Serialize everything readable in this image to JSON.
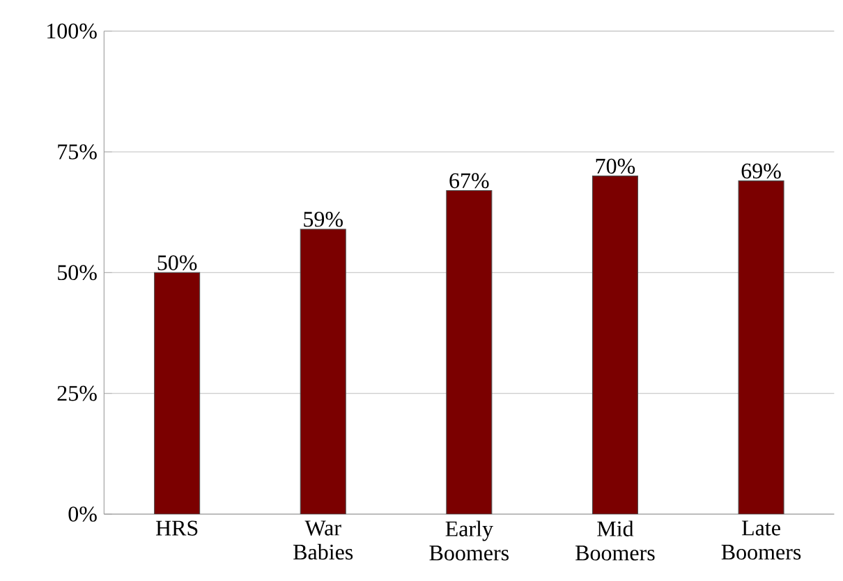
{
  "chart_data": {
    "type": "bar",
    "categories": [
      "HRS",
      "War Babies",
      "Early Boomers",
      "Mid Boomers",
      "Late Boomers"
    ],
    "values": [
      50,
      59,
      67,
      70,
      69
    ],
    "value_labels": [
      "50%",
      "59%",
      "67%",
      "70%",
      "69%"
    ],
    "color": "#7b0000",
    "ylim": [
      0,
      100
    ],
    "yticks": [
      {
        "value": 0,
        "label": "0%"
      },
      {
        "value": 25,
        "label": "25%"
      },
      {
        "value": 50,
        "label": "50%"
      },
      {
        "value": 75,
        "label": "75%"
      },
      {
        "value": 100,
        "label": "100%"
      }
    ],
    "grid": "y"
  }
}
